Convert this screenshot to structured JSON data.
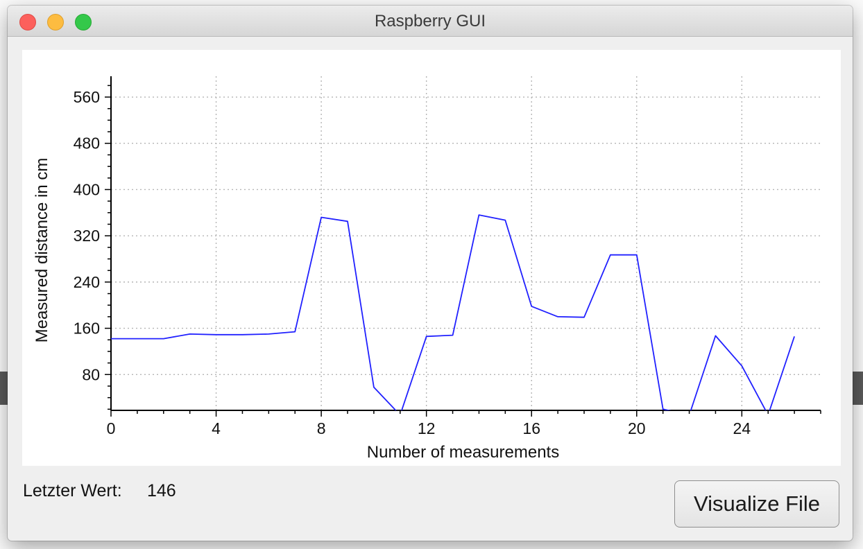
{
  "window": {
    "title": "Raspberry GUI"
  },
  "status": {
    "label": "Letzter Wert:",
    "value": "146"
  },
  "buttons": {
    "visualize_label": "Visualize File"
  },
  "colors": {
    "line": "#2020ff",
    "grid": "#b4b4b4",
    "axis": "#000000"
  },
  "chart_data": {
    "type": "line",
    "title": "",
    "xlabel": "Number of measurements",
    "ylabel": "Measured distance in cm",
    "xlim": [
      0,
      27
    ],
    "ylim": [
      18,
      596
    ],
    "xticks": [
      0,
      4,
      8,
      12,
      16,
      20,
      24
    ],
    "yticks": [
      80,
      160,
      240,
      320,
      400,
      480,
      560
    ],
    "grid": true,
    "series": [
      {
        "name": "",
        "x": [
          0,
          1,
          2,
          3,
          4,
          5,
          6,
          7,
          8,
          9,
          10,
          11,
          12,
          13,
          14,
          15,
          16,
          17,
          18,
          19,
          20,
          21,
          22,
          23,
          24,
          25,
          26
        ],
        "y": [
          142,
          142,
          142,
          150,
          149,
          149,
          150,
          154,
          352,
          345,
          58,
          10,
          146,
          148,
          356,
          347,
          198,
          180,
          179,
          287,
          287,
          20,
          10,
          147,
          95,
          10,
          146
        ]
      }
    ]
  }
}
